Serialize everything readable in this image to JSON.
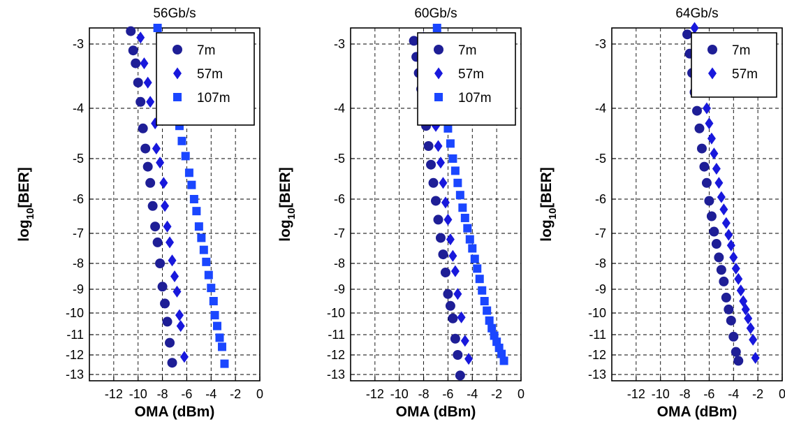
{
  "colors": {
    "7m": "#1e1e96",
    "57m": "#1818dc",
    "107m": "#1a46ff",
    "axis": "#000000",
    "grid": "#000000"
  },
  "ylabel": {
    "base": "log",
    "subscript": "10",
    "rest": "[BER]"
  },
  "xlabel": "OMA (dBm)",
  "chart_data": [
    {
      "type": "scatter",
      "title": "56Gb/s",
      "xlim": [
        -14,
        0
      ],
      "ylim": [
        -13.15,
        -2.75
      ],
      "y_scale": "reciprocal-like (non-linear log10 BER axis)",
      "xticks": [
        -12,
        -10,
        -8,
        -6,
        -4,
        -2,
        0
      ],
      "xtick_labels": [
        "-12",
        "-10",
        "-8",
        "-6",
        "-4",
        "-2",
        "0"
      ],
      "yticks": [
        -3,
        -4,
        -5,
        -6,
        -7,
        -8,
        -9,
        -10,
        -11,
        -12,
        -13
      ],
      "ytick_labels": [
        "-3",
        "-4",
        "-5",
        "-6",
        "-7",
        "-8",
        "-9",
        "-10",
        "-11",
        "-12",
        "-13"
      ],
      "grid": true,
      "legend_position": "top-right",
      "series": [
        {
          "name": "7m",
          "marker": "circle",
          "x": [
            -10.6,
            -10.4,
            -10.2,
            -10.0,
            -9.8,
            -9.6,
            -9.4,
            -9.2,
            -9.0,
            -8.8,
            -8.6,
            -8.4,
            -8.2,
            -8.0,
            -7.8,
            -7.6,
            -7.4,
            -7.2
          ],
          "y": [
            -2.8,
            -3.1,
            -3.3,
            -3.6,
            -3.9,
            -4.4,
            -4.8,
            -5.2,
            -5.6,
            -6.2,
            -6.8,
            -7.3,
            -8.0,
            -8.9,
            -9.6,
            -10.4,
            -11.4,
            -12.4
          ]
        },
        {
          "name": "57m",
          "marker": "diamond",
          "x": [
            -9.8,
            -9.5,
            -9.2,
            -9.0,
            -8.6,
            -8.5,
            -8.2,
            -7.9,
            -7.8,
            -7.6,
            -7.4,
            -7.2,
            -7.0,
            -6.8,
            -6.6,
            -6.5,
            -6.2
          ],
          "y": [
            -2.9,
            -3.3,
            -3.6,
            -3.9,
            -4.3,
            -4.8,
            -5.1,
            -5.6,
            -6.2,
            -6.8,
            -7.3,
            -7.9,
            -8.5,
            -9.1,
            -10.1,
            -10.6,
            -12.1
          ]
        },
        {
          "name": "107m",
          "marker": "square",
          "x": [
            -8.4,
            -8.1,
            -7.8,
            -7.5,
            -7.2,
            -6.9,
            -6.6,
            -6.4,
            -6.1,
            -5.8,
            -5.6,
            -5.4,
            -5.2,
            -5.0,
            -4.8,
            -4.6,
            -4.4,
            -4.2,
            -4.0,
            -3.8,
            -3.7,
            -3.5,
            -3.3,
            -3.1,
            -2.9
          ],
          "y": [
            -2.75,
            -2.95,
            -3.2,
            -3.5,
            -3.75,
            -4.05,
            -4.35,
            -4.65,
            -4.95,
            -5.35,
            -5.65,
            -6.0,
            -6.35,
            -6.8,
            -7.15,
            -7.55,
            -7.95,
            -8.45,
            -8.95,
            -9.5,
            -10.1,
            -10.6,
            -11.15,
            -11.6,
            -12.45
          ]
        }
      ]
    },
    {
      "type": "scatter",
      "title": "60Gb/s",
      "xlim": [
        -14,
        0
      ],
      "ylim": [
        -13.15,
        -2.75
      ],
      "y_scale": "reciprocal-like (non-linear log10 BER axis)",
      "xticks": [
        -12,
        -10,
        -8,
        -6,
        -4,
        -2,
        0
      ],
      "xtick_labels": [
        "-12",
        "-10",
        "-8",
        "-6",
        "-4",
        "-2",
        "0"
      ],
      "yticks": [
        -3,
        -4,
        -5,
        -6,
        -7,
        -8,
        -9,
        -10,
        -11,
        -12,
        -13
      ],
      "ytick_labels": [
        "-3",
        "-4",
        "-5",
        "-6",
        "-7",
        "-8",
        "-9",
        "-10",
        "-11",
        "-12",
        "-13"
      ],
      "grid": true,
      "legend_position": "top-right",
      "series": [
        {
          "name": "7m",
          "marker": "circle",
          "x": [
            -8.8,
            -8.6,
            -8.4,
            -8.2,
            -8.0,
            -7.8,
            -7.6,
            -7.4,
            -7.2,
            -7.0,
            -6.8,
            -6.6,
            -6.4,
            -6.2,
            -6.0,
            -5.8,
            -5.6,
            -5.4,
            -5.2,
            -5.0
          ],
          "y": [
            -2.95,
            -3.2,
            -3.45,
            -3.7,
            -4.0,
            -4.35,
            -4.75,
            -5.15,
            -5.6,
            -6.05,
            -6.6,
            -7.15,
            -7.7,
            -8.35,
            -9.2,
            -9.7,
            -10.25,
            -11.2,
            -12.0,
            -13.05
          ]
        },
        {
          "name": "57m",
          "marker": "diamond",
          "x": [
            -8.0,
            -7.8,
            -7.6,
            -7.4,
            -7.2,
            -7.0,
            -6.8,
            -6.6,
            -6.4,
            -6.2,
            -6.0,
            -5.8,
            -5.6,
            -5.4,
            -5.2,
            -4.9,
            -4.6,
            -4.3
          ],
          "y": [
            -2.9,
            -3.1,
            -3.4,
            -3.7,
            -4.0,
            -4.35,
            -4.75,
            -5.1,
            -5.6,
            -6.1,
            -6.6,
            -7.2,
            -7.75,
            -8.3,
            -9.2,
            -10.2,
            -11.3,
            -12.2
          ]
        },
        {
          "name": "107m",
          "marker": "square",
          "x": [
            -6.9,
            -6.2,
            -6.0,
            -5.8,
            -5.6,
            -5.4,
            -5.2,
            -5.0,
            -4.8,
            -4.6,
            -4.4,
            -4.2,
            -4.0,
            -3.8,
            -3.6,
            -3.4,
            -3.2,
            -3.0,
            -2.8,
            -2.6,
            -2.4,
            -2.2,
            -2.0,
            -1.8,
            -1.6,
            -1.4
          ],
          "y": [
            -2.75,
            -4.0,
            -4.4,
            -4.7,
            -5.0,
            -5.3,
            -5.6,
            -5.9,
            -6.25,
            -6.55,
            -6.85,
            -7.2,
            -7.5,
            -7.85,
            -8.2,
            -8.6,
            -9.05,
            -9.5,
            -9.9,
            -10.35,
            -10.7,
            -11.05,
            -11.35,
            -11.65,
            -11.95,
            -12.3
          ]
        }
      ]
    },
    {
      "type": "scatter",
      "title": "64Gb/s",
      "xlim": [
        -14,
        0
      ],
      "ylim": [
        -13.15,
        -2.75
      ],
      "y_scale": "reciprocal-like (non-linear log10 BER axis)",
      "xticks": [
        -12,
        -10,
        -8,
        -6,
        -4,
        -2,
        0
      ],
      "xtick_labels": [
        "-12",
        "-10",
        "-8",
        "-6",
        "-4",
        "-2",
        "0"
      ],
      "yticks": [
        -3,
        -4,
        -5,
        -6,
        -7,
        -8,
        -9,
        -10,
        -11,
        -12,
        -13
      ],
      "ytick_labels": [
        "-3",
        "-4",
        "-5",
        "-6",
        "-7",
        "-8",
        "-9",
        "-10",
        "-11",
        "-12",
        "-13"
      ],
      "grid": true,
      "legend_position": "top-right",
      "series": [
        {
          "name": "7m",
          "marker": "circle",
          "x": [
            -7.8,
            -7.6,
            -7.4,
            -7.2,
            -7.0,
            -6.8,
            -6.6,
            -6.4,
            -6.2,
            -6.0,
            -5.8,
            -5.6,
            -5.4,
            -5.2,
            -5.0,
            -4.8,
            -4.6,
            -4.4,
            -4.2,
            -4.0,
            -3.8,
            -3.6
          ],
          "y": [
            -2.85,
            -3.15,
            -3.45,
            -3.75,
            -4.05,
            -4.4,
            -4.8,
            -5.2,
            -5.6,
            -6.05,
            -6.5,
            -6.95,
            -7.35,
            -7.8,
            -8.25,
            -8.7,
            -9.35,
            -9.85,
            -10.35,
            -11.1,
            -11.85,
            -12.3
          ]
        },
        {
          "name": "57m",
          "marker": "diamond",
          "x": [
            -7.2,
            -7.0,
            -6.8,
            -6.6,
            -6.4,
            -6.2,
            -6.0,
            -5.8,
            -5.6,
            -5.4,
            -5.2,
            -5.0,
            -4.8,
            -4.6,
            -4.4,
            -4.2,
            -4.0,
            -3.8,
            -3.6,
            -3.4,
            -3.2,
            -3.0,
            -2.8,
            -2.6,
            -2.4,
            -2.2
          ],
          "y": [
            -2.75,
            -2.95,
            -3.2,
            -3.45,
            -3.7,
            -4.0,
            -4.3,
            -4.6,
            -4.9,
            -5.25,
            -5.6,
            -5.95,
            -6.3,
            -6.7,
            -7.05,
            -7.4,
            -7.8,
            -8.2,
            -8.6,
            -9.05,
            -9.5,
            -9.85,
            -10.25,
            -10.7,
            -11.25,
            -12.15
          ]
        }
      ]
    }
  ]
}
